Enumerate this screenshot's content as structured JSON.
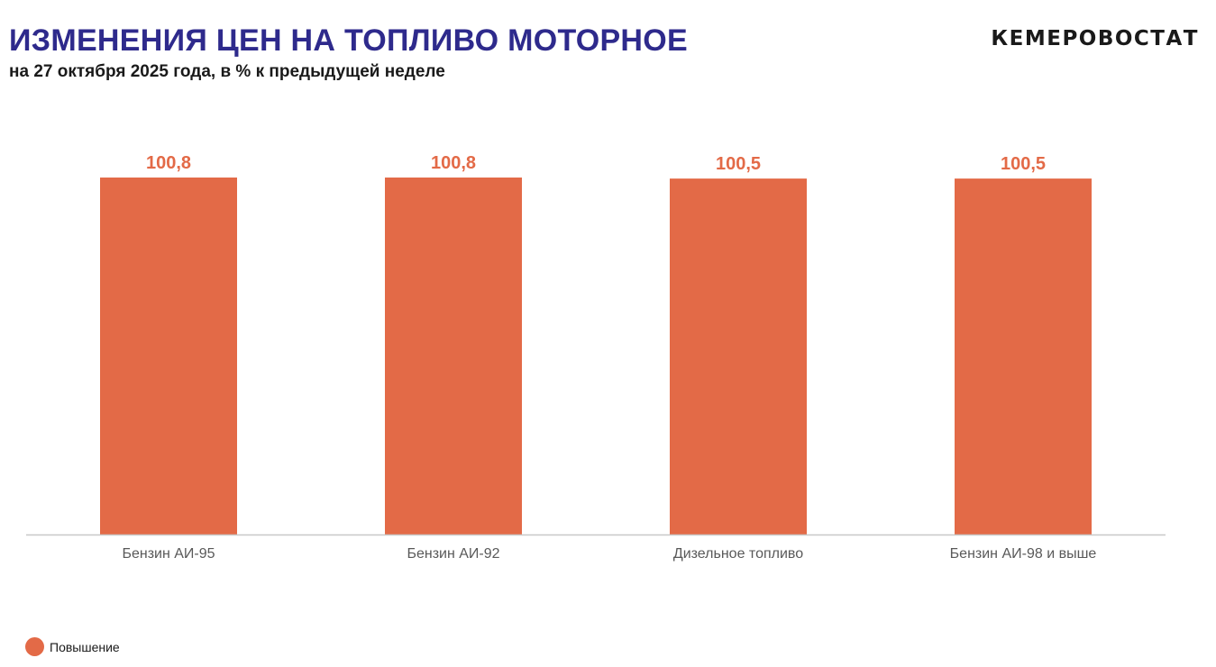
{
  "header": {
    "title": "ИЗМЕНЕНИЯ ЦЕН НА ТОПЛИВО МОТОРНОЕ",
    "subtitle": "на 27 октября 2025 года, в % к предыдущей неделе",
    "brand": "КЕМЕРОВОСТАТ"
  },
  "colors": {
    "title": "#2e2a8c",
    "bar": "#e36a47",
    "data_label": "#e36a47",
    "axis_line": "#c8c8c8",
    "tick_label": "#595959"
  },
  "chart_data": {
    "type": "bar",
    "categories": [
      "Бензин АИ-95",
      "Бензин АИ-92",
      "Дизельное топливо",
      "Бензин АИ-98 и выше"
    ],
    "series": [
      {
        "name": "Повышение",
        "values": [
          100.8,
          100.8,
          100.5,
          100.5
        ]
      }
    ],
    "data_labels": [
      "100,8",
      "100,8",
      "100,5",
      "100,5"
    ],
    "title": "",
    "xlabel": "",
    "ylabel": "",
    "ylim": [
      0,
      101.8
    ],
    "grid": false,
    "legend": "bottom-left"
  },
  "legend": {
    "items": [
      {
        "label": "Повышение",
        "color": "#e36a47"
      }
    ]
  }
}
